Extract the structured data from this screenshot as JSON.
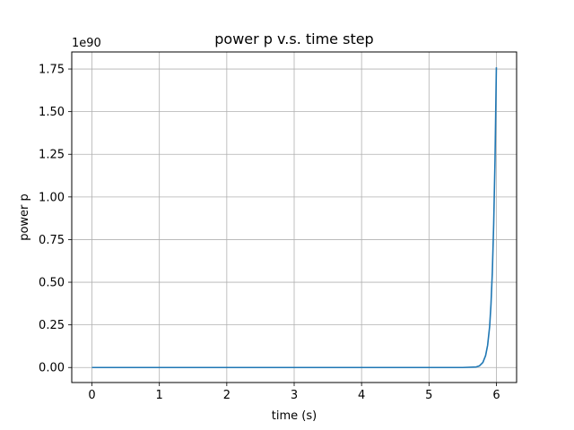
{
  "chart_data": {
    "type": "line",
    "title": "power p v.s. time step",
    "xlabel": "time (s)",
    "ylabel": "power p",
    "y_offset_label": "1e90",
    "xlim": [
      -0.3,
      6.3
    ],
    "ylim": [
      -0.088,
      1.85
    ],
    "xticks": [
      0,
      1,
      2,
      3,
      4,
      5,
      6
    ],
    "xtick_labels": [
      "0",
      "1",
      "2",
      "3",
      "4",
      "5",
      "6"
    ],
    "yticks": [
      0,
      0.25,
      0.5,
      0.75,
      1.0,
      1.25,
      1.5,
      1.75
    ],
    "ytick_labels": [
      "0.00",
      "0.25",
      "0.50",
      "0.75",
      "1.00",
      "1.25",
      "1.50",
      "1.75"
    ],
    "grid": true,
    "series": [
      {
        "color": "#1f77b4",
        "x": [
          0,
          1,
          2,
          3,
          4,
          5,
          5.5,
          5.7,
          5.75,
          5.8,
          5.84,
          5.87,
          5.9,
          5.92,
          5.94,
          5.96,
          5.98,
          6.0
        ],
        "y": [
          0,
          0,
          0,
          0,
          0,
          0,
          0.0,
          0.003,
          0.01,
          0.03,
          0.07,
          0.13,
          0.24,
          0.37,
          0.56,
          0.84,
          1.22,
          1.76
        ]
      }
    ]
  }
}
